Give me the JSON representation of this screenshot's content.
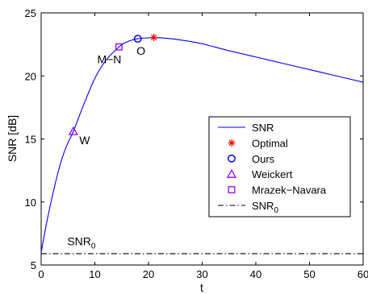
{
  "chart_data": {
    "type": "line",
    "xlabel": "t",
    "ylabel": "SNR [dB]",
    "xlim": [
      0,
      60
    ],
    "ylim": [
      5,
      25
    ],
    "xticks": [
      0,
      10,
      20,
      30,
      40,
      50,
      60
    ],
    "yticks": [
      5,
      10,
      15,
      20,
      25
    ],
    "grid": false,
    "legend_position": "right",
    "series": [
      {
        "name": "SNR",
        "color": "#0000ff",
        "style": "solid",
        "x": [
          0,
          1,
          2,
          3,
          4,
          5,
          6,
          8,
          10,
          12,
          14.5,
          16,
          18,
          20,
          21,
          23,
          26,
          30,
          35,
          40,
          45,
          50,
          55,
          60
        ],
        "y": [
          6.0,
          8.3,
          10.3,
          12.1,
          13.6,
          14.7,
          15.6,
          17.8,
          19.8,
          21.2,
          22.3,
          22.7,
          22.95,
          23.02,
          23.03,
          23.0,
          22.85,
          22.55,
          22.0,
          21.5,
          21.0,
          20.5,
          20.0,
          19.5
        ]
      },
      {
        "name": "SNR_0",
        "color": "#000000",
        "style": "dash-dot",
        "x": [
          0,
          60
        ],
        "y": [
          5.9,
          5.9
        ]
      }
    ],
    "markers": [
      {
        "name": "Optimal",
        "symbol": "star",
        "color": "#ff0000",
        "x": 21,
        "y": 23.05
      },
      {
        "name": "Ours",
        "symbol": "circle",
        "color": "#0000ff",
        "x": 18,
        "y": 22.95,
        "label": "O"
      },
      {
        "name": "Weickert",
        "symbol": "triangle",
        "color": "#9900ff",
        "x": 6,
        "y": 15.6,
        "label": "W"
      },
      {
        "name": "Mrazek-Navara",
        "symbol": "square",
        "color": "#9900ff",
        "x": 14.5,
        "y": 22.3,
        "label": "M−N"
      }
    ],
    "annotations": [
      {
        "text": "SNR",
        "subscript": "0",
        "x": 7.5,
        "y": 6.3
      }
    ],
    "legend": [
      {
        "label": "SNR",
        "kind": "line",
        "color": "#0000ff",
        "style": "solid"
      },
      {
        "label": "Optimal",
        "kind": "marker",
        "symbol": "star",
        "color": "#ff0000"
      },
      {
        "label": "Ours",
        "kind": "marker",
        "symbol": "circle",
        "color": "#0000ff"
      },
      {
        "label": "Weickert",
        "kind": "marker",
        "symbol": "triangle",
        "color": "#9900ff"
      },
      {
        "label": "Mrazek−Navara",
        "kind": "marker",
        "symbol": "square",
        "color": "#9900ff"
      },
      {
        "label": "SNR",
        "subscript": "0",
        "kind": "line",
        "color": "#000000",
        "style": "dash-dot"
      }
    ]
  }
}
